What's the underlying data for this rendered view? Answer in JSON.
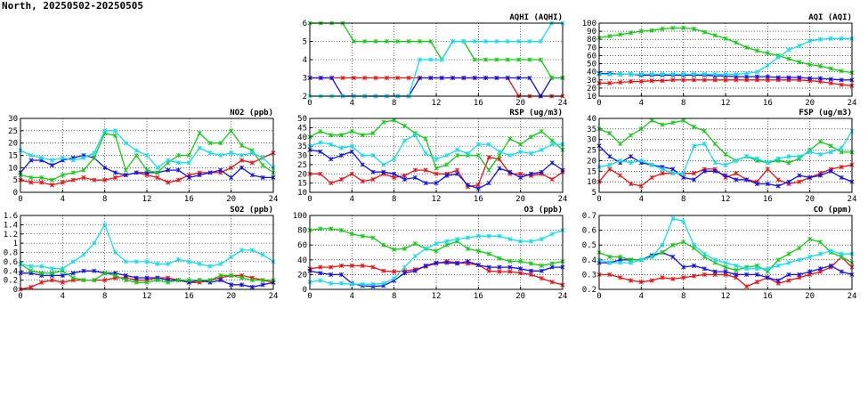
{
  "header": {
    "title": "North, 20250502-20250505"
  },
  "colors": {
    "red": "#ee1111",
    "blue": "#1111ee",
    "green": "#11cc11",
    "cyan": "#11ddee"
  },
  "chart_data": [
    {
      "id": "aqhi",
      "type": "line",
      "title": "AQHI (AQHI)",
      "ylim": [
        2,
        6
      ],
      "yticks": [
        2,
        3,
        4,
        5,
        6
      ],
      "xlim": [
        0,
        24
      ],
      "xticks": [
        0,
        4,
        8,
        12,
        16,
        20,
        24
      ],
      "grid": true,
      "series": [
        {
          "color": "red",
          "values": [
            3,
            3,
            3,
            3,
            3,
            3,
            3,
            3,
            3,
            3,
            3,
            3,
            3,
            3,
            3,
            3,
            3,
            3,
            3,
            2,
            2,
            2,
            2,
            2
          ]
        },
        {
          "color": "blue",
          "values": [
            3,
            3,
            3,
            2,
            2,
            2,
            2,
            2,
            2,
            2,
            3,
            3,
            3,
            3,
            3,
            3,
            3,
            3,
            3,
            3,
            3,
            2,
            3,
            3
          ]
        },
        {
          "color": "green",
          "values": [
            6,
            6,
            6,
            6,
            5,
            5,
            5,
            5,
            5,
            5,
            5,
            5,
            4,
            5,
            5,
            4,
            4,
            4,
            4,
            4,
            4,
            4,
            3,
            3
          ]
        },
        {
          "color": "cyan",
          "values": [
            2,
            2,
            2,
            2,
            2,
            2,
            2,
            2,
            2,
            2,
            4,
            4,
            4,
            5,
            5,
            5,
            5,
            5,
            5,
            5,
            5,
            5,
            6,
            6
          ]
        }
      ]
    },
    {
      "id": "aqi",
      "type": "line",
      "title": "AQI (AQI)",
      "ylim": [
        10,
        100
      ],
      "yticks": [
        10,
        20,
        30,
        40,
        50,
        60,
        70,
        80,
        90,
        100
      ],
      "xlim": [
        0,
        24
      ],
      "xticks": [
        0,
        4,
        8,
        12,
        16,
        20,
        24
      ],
      "grid": true,
      "series": [
        {
          "color": "red",
          "values": [
            26,
            26,
            27,
            28,
            28,
            29,
            29,
            30,
            30,
            30,
            30,
            30,
            30,
            30,
            30,
            30,
            30,
            30,
            30,
            30,
            29,
            28,
            26,
            24,
            23
          ]
        },
        {
          "color": "blue",
          "values": [
            38,
            38,
            37,
            37,
            36,
            36,
            36,
            36,
            36,
            36,
            36,
            35,
            35,
            34,
            34,
            34,
            34,
            33,
            33,
            33,
            32,
            32,
            31,
            30,
            30
          ]
        },
        {
          "color": "green",
          "values": [
            82,
            84,
            86,
            88,
            90,
            91,
            93,
            94,
            94,
            93,
            89,
            85,
            81,
            76,
            70,
            66,
            63,
            60,
            56,
            52,
            49,
            47,
            44,
            41,
            39
          ]
        },
        {
          "color": "cyan",
          "values": [
            37,
            37,
            37,
            37,
            37,
            37,
            37,
            37,
            37,
            37,
            37,
            37,
            37,
            37,
            38,
            40,
            48,
            58,
            67,
            72,
            78,
            80,
            81,
            81,
            81
          ]
        }
      ]
    },
    {
      "id": "no2",
      "type": "line",
      "title": "NO2 (ppb)",
      "ylim": [
        0,
        30
      ],
      "yticks": [
        0,
        5,
        10,
        15,
        20,
        25,
        30
      ],
      "xlim": [
        0,
        24
      ],
      "xticks": [
        0,
        4,
        8,
        12,
        16,
        20,
        24
      ],
      "grid": true,
      "series": [
        {
          "color": "red",
          "values": [
            5,
            4,
            4,
            3,
            4,
            5,
            6,
            5,
            5,
            6,
            7,
            8,
            7,
            6,
            4,
            5,
            7,
            8,
            8,
            8,
            10,
            13,
            12,
            14,
            16
          ]
        },
        {
          "color": "blue",
          "values": [
            8,
            13,
            13,
            11,
            13,
            14,
            15,
            14,
            10,
            8,
            7,
            8,
            8,
            8,
            9,
            9,
            6,
            7,
            8,
            9,
            6,
            10,
            7,
            6,
            6
          ]
        },
        {
          "color": "green",
          "values": [
            7,
            6,
            6,
            5,
            7,
            8,
            9,
            14,
            24,
            23,
            9,
            15,
            9,
            8,
            12,
            15,
            15,
            24,
            20,
            20,
            25,
            19,
            17,
            11,
            8
          ]
        },
        {
          "color": "cyan",
          "values": [
            17,
            15,
            14,
            13,
            14,
            13,
            14,
            16,
            25,
            25,
            20,
            17,
            15,
            10,
            13,
            12,
            12,
            18,
            16,
            15,
            16,
            15,
            16,
            14,
            10
          ]
        }
      ]
    },
    {
      "id": "rsp",
      "type": "line",
      "title": "RSP (ug/m3)",
      "ylim": [
        10,
        50
      ],
      "yticks": [
        10,
        15,
        20,
        25,
        30,
        35,
        40,
        45,
        50
      ],
      "xlim": [
        0,
        24
      ],
      "xticks": [
        0,
        4,
        8,
        12,
        16,
        20,
        24
      ],
      "grid": true,
      "series": [
        {
          "color": "red",
          "values": [
            20,
            20,
            15,
            17,
            20,
            16,
            17,
            20,
            18,
            19,
            22,
            22,
            20,
            20,
            22,
            13,
            14,
            29,
            28,
            20,
            20,
            19,
            20,
            17,
            21
          ]
        },
        {
          "color": "blue",
          "values": [
            33,
            32,
            28,
            30,
            32,
            25,
            21,
            21,
            20,
            17,
            18,
            15,
            15,
            19,
            20,
            14,
            12,
            15,
            23,
            21,
            18,
            20,
            21,
            26,
            22
          ]
        },
        {
          "color": "green",
          "values": [
            40,
            43,
            41,
            41,
            43,
            41,
            42,
            48,
            49,
            46,
            42,
            39,
            23,
            25,
            30,
            30,
            30,
            22,
            30,
            39,
            36,
            40,
            43,
            38,
            33
          ]
        },
        {
          "color": "cyan",
          "values": [
            35,
            37,
            36,
            34,
            35,
            30,
            30,
            25,
            28,
            38,
            41,
            31,
            28,
            30,
            33,
            31,
            36,
            36,
            32,
            30,
            32,
            31,
            33,
            36,
            36
          ]
        }
      ]
    },
    {
      "id": "fsp",
      "type": "line",
      "title": "FSP (ug/m3)",
      "ylim": [
        5,
        40
      ],
      "yticks": [
        5,
        10,
        15,
        20,
        25,
        30,
        35,
        40
      ],
      "xlim": [
        0,
        24
      ],
      "xticks": [
        0,
        4,
        8,
        12,
        16,
        20,
        24
      ],
      "grid": true,
      "series": [
        {
          "color": "red",
          "values": [
            10,
            16,
            13,
            9,
            8,
            12,
            14,
            14,
            14,
            14,
            16,
            16,
            12,
            14,
            11,
            10,
            16,
            11,
            9,
            10,
            12,
            14,
            16,
            17,
            18
          ]
        },
        {
          "color": "blue",
          "values": [
            27,
            22,
            19,
            22,
            19,
            18,
            17,
            16,
            12,
            11,
            15,
            15,
            13,
            11,
            11,
            9,
            9,
            8,
            10,
            13,
            12,
            13,
            15,
            12,
            10
          ]
        },
        {
          "color": "green",
          "values": [
            35,
            33,
            28,
            32,
            35,
            39,
            37,
            38,
            39,
            36,
            34,
            28,
            23,
            20,
            22,
            20,
            19,
            20,
            19,
            21,
            25,
            29,
            27,
            24,
            24
          ]
        },
        {
          "color": "cyan",
          "values": [
            17,
            18,
            20,
            19,
            20,
            18,
            16,
            14,
            14,
            27,
            28,
            19,
            18,
            20,
            22,
            21,
            19,
            21,
            22,
            22,
            24,
            23,
            24,
            26,
            34
          ]
        }
      ]
    },
    {
      "id": "so2",
      "type": "line",
      "title": "SO2 (ppb)",
      "ylim": [
        0,
        1.6
      ],
      "yticks": [
        0,
        0.2,
        0.4,
        0.6,
        0.8,
        1.0,
        1.2,
        1.4,
        1.6
      ],
      "xlim": [
        0,
        24
      ],
      "xticks": [
        0,
        4,
        8,
        12,
        16,
        20,
        24
      ],
      "grid": true,
      "series": [
        {
          "color": "red",
          "values": [
            0.0,
            0.05,
            0.15,
            0.2,
            0.15,
            0.2,
            0.2,
            0.2,
            0.2,
            0.25,
            0.25,
            0.2,
            0.2,
            0.25,
            0.25,
            0.2,
            0.15,
            0.15,
            0.2,
            0.25,
            0.3,
            0.3,
            0.25,
            0.2,
            0.15
          ]
        },
        {
          "color": "blue",
          "values": [
            0.35,
            0.35,
            0.3,
            0.3,
            0.3,
            0.35,
            0.4,
            0.4,
            0.35,
            0.35,
            0.3,
            0.25,
            0.25,
            0.25,
            0.2,
            0.2,
            0.15,
            0.2,
            0.15,
            0.2,
            0.1,
            0.1,
            0.05,
            0.1,
            0.15
          ]
        },
        {
          "color": "green",
          "values": [
            0.55,
            0.4,
            0.35,
            0.35,
            0.4,
            0.25,
            0.2,
            0.2,
            0.35,
            0.3,
            0.2,
            0.15,
            0.15,
            0.2,
            0.15,
            0.2,
            0.2,
            0.2,
            0.2,
            0.3,
            0.3,
            0.25,
            0.2,
            0.2,
            0.2
          ]
        },
        {
          "color": "cyan",
          "values": [
            0.55,
            0.5,
            0.5,
            0.45,
            0.45,
            0.6,
            0.75,
            1.0,
            1.4,
            0.8,
            0.6,
            0.6,
            0.6,
            0.55,
            0.55,
            0.65,
            0.6,
            0.55,
            0.5,
            0.55,
            0.7,
            0.85,
            0.85,
            0.75,
            0.6
          ]
        }
      ]
    },
    {
      "id": "o3",
      "type": "line",
      "title": "O3 (ppb)",
      "ylim": [
        0,
        100
      ],
      "yticks": [
        0,
        20,
        40,
        60,
        80,
        100
      ],
      "xlim": [
        0,
        24
      ],
      "xticks": [
        0,
        4,
        8,
        12,
        16,
        20,
        24
      ],
      "grid": true,
      "series": [
        {
          "color": "red",
          "values": [
            28,
            30,
            30,
            32,
            32,
            32,
            30,
            25,
            24,
            25,
            27,
            31,
            35,
            38,
            36,
            35,
            33,
            25,
            24,
            24,
            22,
            20,
            15,
            10,
            6
          ]
        },
        {
          "color": "blue",
          "values": [
            25,
            22,
            20,
            20,
            8,
            5,
            4,
            5,
            12,
            22,
            25,
            32,
            36,
            36,
            35,
            38,
            33,
            30,
            30,
            30,
            28,
            25,
            25,
            30,
            30
          ]
        },
        {
          "color": "green",
          "values": [
            80,
            82,
            82,
            80,
            75,
            72,
            70,
            60,
            54,
            55,
            62,
            55,
            52,
            60,
            65,
            55,
            52,
            48,
            42,
            38,
            38,
            35,
            32,
            35,
            38
          ]
        },
        {
          "color": "cyan",
          "values": [
            10,
            12,
            8,
            8,
            7,
            7,
            7,
            8,
            15,
            30,
            45,
            55,
            62,
            65,
            68,
            70,
            72,
            72,
            72,
            68,
            65,
            65,
            68,
            75,
            80
          ]
        }
      ]
    },
    {
      "id": "co",
      "type": "line",
      "title": "CO (ppm)",
      "ylim": [
        0.2,
        0.7
      ],
      "yticks": [
        0.2,
        0.3,
        0.4,
        0.5,
        0.6,
        0.7
      ],
      "xlim": [
        0,
        24
      ],
      "xticks": [
        0,
        4,
        8,
        12,
        16,
        20,
        24
      ],
      "grid": true,
      "series": [
        {
          "color": "red",
          "values": [
            0.3,
            0.3,
            0.28,
            0.26,
            0.25,
            0.26,
            0.28,
            0.27,
            0.28,
            0.29,
            0.3,
            0.3,
            0.3,
            0.28,
            0.22,
            0.25,
            0.28,
            0.24,
            0.26,
            0.28,
            0.3,
            0.32,
            0.35,
            0.42,
            0.35
          ]
        },
        {
          "color": "blue",
          "values": [
            0.38,
            0.38,
            0.4,
            0.4,
            0.4,
            0.43,
            0.45,
            0.42,
            0.35,
            0.36,
            0.34,
            0.32,
            0.32,
            0.3,
            0.3,
            0.3,
            0.28,
            0.26,
            0.3,
            0.3,
            0.32,
            0.34,
            0.36,
            0.32,
            0.3
          ]
        },
        {
          "color": "green",
          "values": [
            0.45,
            0.42,
            0.42,
            0.4,
            0.4,
            0.42,
            0.45,
            0.5,
            0.52,
            0.48,
            0.42,
            0.38,
            0.35,
            0.33,
            0.35,
            0.36,
            0.32,
            0.4,
            0.44,
            0.48,
            0.54,
            0.52,
            0.45,
            0.42,
            0.38
          ]
        },
        {
          "color": "cyan",
          "values": [
            0.4,
            0.38,
            0.38,
            0.38,
            0.4,
            0.42,
            0.5,
            0.68,
            0.66,
            0.5,
            0.44,
            0.4,
            0.38,
            0.36,
            0.34,
            0.34,
            0.34,
            0.36,
            0.38,
            0.4,
            0.42,
            0.44,
            0.46,
            0.44,
            0.44
          ]
        }
      ]
    }
  ]
}
